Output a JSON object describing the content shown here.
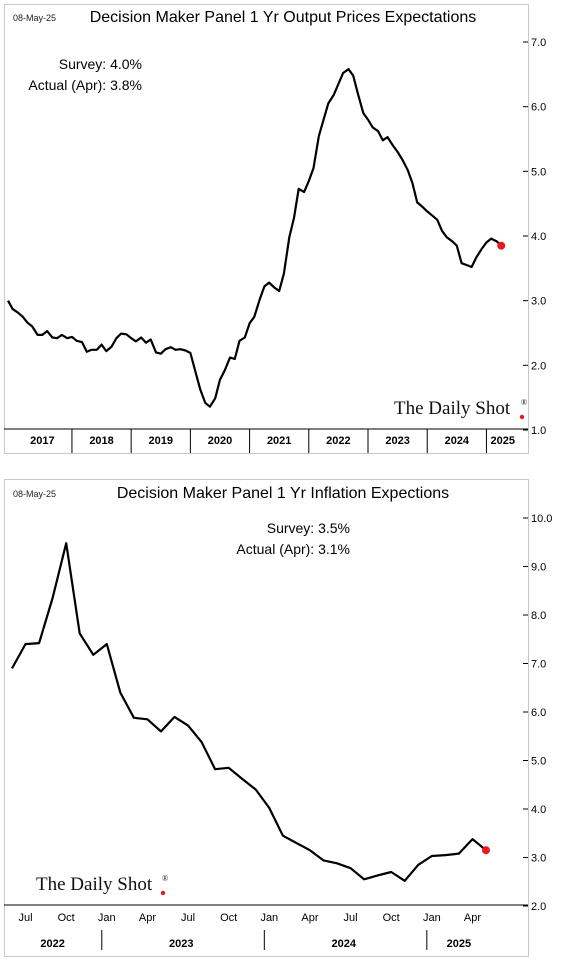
{
  "watermark": {
    "text": "The Daily Shot",
    "mark": "®",
    "dot_color": "#e8191c"
  },
  "chart_data": [
    {
      "type": "line",
      "date_stamp": "08-May-25",
      "title": "Decision Maker Panel 1 Yr Output Prices Expectations",
      "annotations": [
        "Survey:  4.0%",
        "Actual (Apr):  3.8%"
      ],
      "xlabel": "",
      "ylabel": "",
      "ylim": [
        1.0,
        7.0
      ],
      "yticks": [
        "1.0",
        "2.0",
        "3.0",
        "4.0",
        "5.0",
        "6.0",
        "7.0"
      ],
      "yticks_values": [
        1,
        2,
        3,
        4,
        5,
        6,
        7
      ],
      "grid": false,
      "x_categories": [
        "2017",
        "2018",
        "2019",
        "2020",
        "2021",
        "2022",
        "2023",
        "2024",
        "2025"
      ],
      "xlim": [
        2016.92,
        2025.55
      ],
      "line_color": "#000000",
      "highlight": {
        "x": 2025.25,
        "y": 3.85,
        "color": "#e8191c"
      },
      "series": [
        {
          "x": [
            2016.92,
            2017.0,
            2017.08,
            2017.17,
            2017.25,
            2017.33,
            2017.42,
            2017.5,
            2017.58,
            2017.67,
            2017.75,
            2017.83,
            2017.92,
            2018.0,
            2018.08,
            2018.17,
            2018.25,
            2018.33,
            2018.42,
            2018.5,
            2018.58,
            2018.67,
            2018.75,
            2018.83,
            2018.92,
            2019.0,
            2019.08,
            2019.17,
            2019.25,
            2019.33,
            2019.42,
            2019.5,
            2019.58,
            2019.67,
            2019.75,
            2019.83,
            2019.92,
            2020.0,
            2020.08,
            2020.17,
            2020.25,
            2020.33,
            2020.42,
            2020.5,
            2020.58,
            2020.67,
            2020.75,
            2020.83,
            2020.92,
            2021.0,
            2021.08,
            2021.17,
            2021.25,
            2021.33,
            2021.42,
            2021.5,
            2021.58,
            2021.67,
            2021.75,
            2021.83,
            2021.92,
            2022.0,
            2022.08,
            2022.17,
            2022.25,
            2022.33,
            2022.42,
            2022.5,
            2022.58,
            2022.67,
            2022.75,
            2022.83,
            2022.92,
            2023.0,
            2023.08,
            2023.17,
            2023.25,
            2023.33,
            2023.42,
            2023.5,
            2023.58,
            2023.67,
            2023.75,
            2023.83,
            2023.92,
            2024.0,
            2024.08,
            2024.17,
            2024.25,
            2024.33,
            2024.42,
            2024.5,
            2024.58,
            2024.67,
            2024.75,
            2024.83,
            2024.92,
            2025.0,
            2025.08,
            2025.17,
            2025.25
          ],
          "values": [
            3.0,
            2.87,
            2.82,
            2.75,
            2.66,
            2.6,
            2.47,
            2.47,
            2.53,
            2.43,
            2.42,
            2.47,
            2.42,
            2.44,
            2.38,
            2.36,
            2.21,
            2.24,
            2.24,
            2.32,
            2.22,
            2.29,
            2.42,
            2.49,
            2.48,
            2.42,
            2.37,
            2.43,
            2.35,
            2.4,
            2.2,
            2.18,
            2.25,
            2.28,
            2.24,
            2.25,
            2.23,
            2.19,
            1.92,
            1.62,
            1.42,
            1.36,
            1.49,
            1.78,
            1.92,
            2.12,
            2.1,
            2.38,
            2.43,
            2.65,
            2.75,
            3.02,
            3.22,
            3.28,
            3.2,
            3.15,
            3.42,
            3.98,
            4.28,
            4.73,
            4.68,
            4.85,
            5.05,
            5.55,
            5.8,
            6.05,
            6.18,
            6.35,
            6.52,
            6.58,
            6.48,
            6.2,
            5.9,
            5.8,
            5.68,
            5.62,
            5.48,
            5.53,
            5.4,
            5.3,
            5.18,
            5.02,
            4.82,
            4.52,
            4.45,
            4.38,
            4.32,
            4.25,
            4.08,
            3.98,
            3.92,
            3.85,
            3.58,
            3.55,
            3.52,
            3.67,
            3.8,
            3.9,
            3.96,
            3.92,
            3.85
          ]
        }
      ]
    },
    {
      "type": "line",
      "date_stamp": "08-May-25",
      "title": "Decision Maker Panel 1 Yr Inflation Expections",
      "annotations": [
        "Survey:  3.5%",
        "Actual (Apr):  3.1%"
      ],
      "xlabel": "",
      "ylabel": "",
      "ylim": [
        2.0,
        10.0
      ],
      "yticks": [
        "2.0",
        "3.0",
        "4.0",
        "5.0",
        "6.0",
        "7.0",
        "8.0",
        "9.0",
        "10.0"
      ],
      "yticks_values": [
        2,
        3,
        4,
        5,
        6,
        7,
        8,
        9,
        10
      ],
      "grid": false,
      "x_month_labels": [
        "Jul",
        "Oct",
        "Jan",
        "Apr",
        "Jul",
        "Oct",
        "Jan",
        "Apr",
        "Jul",
        "Oct",
        "Jan",
        "Apr"
      ],
      "x_month_values": [
        "2022-07",
        "2022-10",
        "2023-01",
        "2023-04",
        "2023-07",
        "2023-10",
        "2024-01",
        "2024-04",
        "2024-07",
        "2024-10",
        "2025-01",
        "2025-04"
      ],
      "x_year_labels": [
        "2022",
        "2023",
        "2024",
        "2025"
      ],
      "x_year_spans": [
        [
          "2022-06",
          "2022-12"
        ],
        [
          "2023-01",
          "2023-12"
        ],
        [
          "2024-01",
          "2024-12"
        ],
        [
          "2025-01",
          "2025-05"
        ]
      ],
      "xlim": [
        "2022-06",
        "2025-05"
      ],
      "line_color": "#000000",
      "highlight": {
        "x": "2025-05",
        "y": 3.15,
        "color": "#e8191c"
      },
      "series": [
        {
          "x": [
            "2022-06",
            "2022-07",
            "2022-08",
            "2022-09",
            "2022-10",
            "2022-11",
            "2022-12",
            "2023-01",
            "2023-02",
            "2023-03",
            "2023-04",
            "2023-05",
            "2023-06",
            "2023-07",
            "2023-08",
            "2023-09",
            "2023-10",
            "2023-11",
            "2023-12",
            "2024-01",
            "2024-02",
            "2024-03",
            "2024-04",
            "2024-05",
            "2024-06",
            "2024-07",
            "2024-08",
            "2024-09",
            "2024-10",
            "2024-11",
            "2024-12",
            "2025-01",
            "2025-02",
            "2025-03",
            "2025-04",
            "2025-05"
          ],
          "values": [
            6.9,
            7.4,
            7.42,
            8.35,
            9.48,
            7.62,
            7.18,
            7.4,
            6.4,
            5.88,
            5.85,
            5.6,
            5.9,
            5.72,
            5.38,
            4.82,
            4.85,
            4.62,
            4.4,
            4.02,
            3.45,
            3.3,
            3.15,
            2.94,
            2.88,
            2.78,
            2.55,
            2.63,
            2.7,
            2.52,
            2.85,
            3.03,
            3.05,
            3.08,
            3.38,
            3.15
          ]
        }
      ]
    }
  ]
}
